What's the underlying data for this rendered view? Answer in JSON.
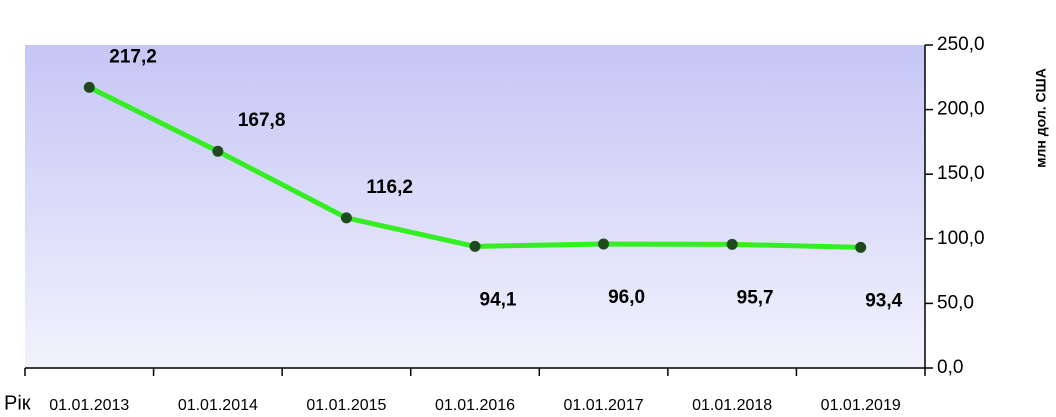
{
  "chart_data": {
    "type": "line",
    "x_label": "Рік",
    "y_label": "млн дол. США",
    "categories": [
      "01.01.2013",
      "01.01.2014",
      "01.01.2015",
      "01.01.2016",
      "01.01.2017",
      "01.01.2018",
      "01.01.2019"
    ],
    "series": [
      {
        "color": "#33ee22",
        "marker_color": "#1e4a1e",
        "values": [
          217.2,
          167.8,
          116.2,
          94.1,
          96.0,
          95.7,
          93.4
        ],
        "value_labels": [
          "217,2",
          "167,8",
          "116,2",
          "94,1",
          "96,0",
          "95,7",
          "93,4"
        ]
      }
    ],
    "ylim": [
      0,
      250
    ],
    "yticks": [
      {
        "value": 0,
        "label": "0,0"
      },
      {
        "value": 50,
        "label": "50,0"
      },
      {
        "value": 100,
        "label": "100,0"
      },
      {
        "value": 150,
        "label": "150,0"
      },
      {
        "value": 200,
        "label": "200,0"
      },
      {
        "value": 250,
        "label": "250,0"
      }
    ],
    "y_axis_side": "right"
  }
}
